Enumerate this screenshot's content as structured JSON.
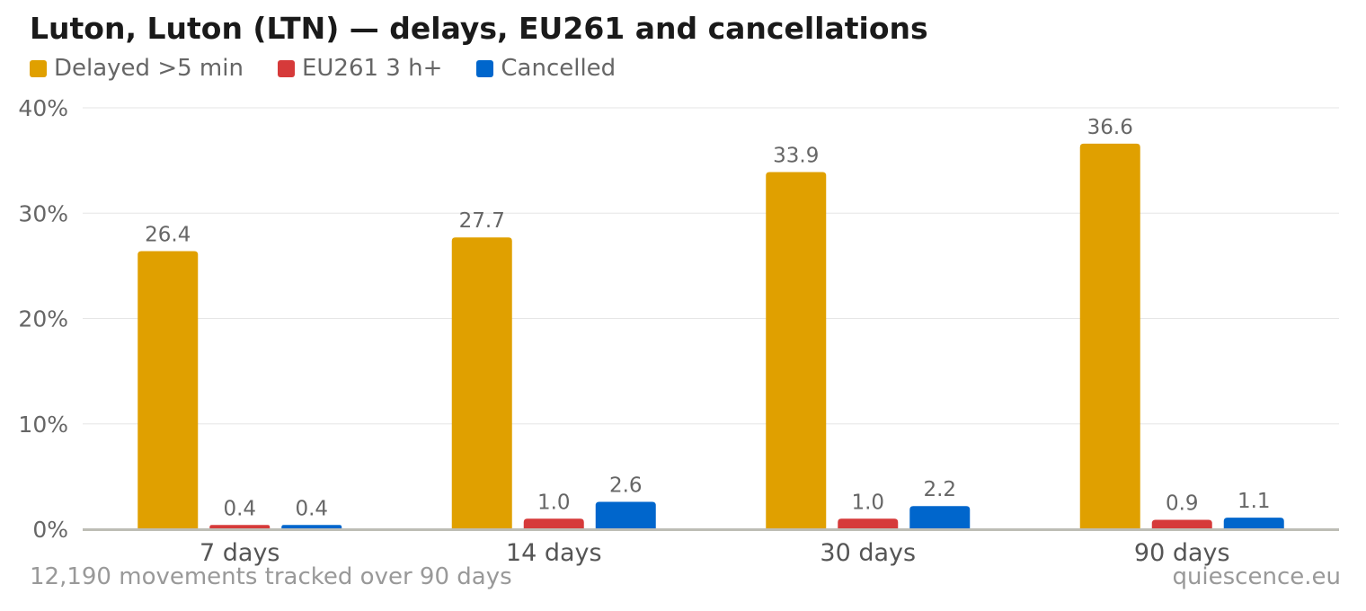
{
  "chart_data": {
    "type": "bar",
    "title": "Luton, Luton (LTN) — delays, EU261 and cancellations",
    "categories": [
      "7 days",
      "14 days",
      "30 days",
      "90 days"
    ],
    "series": [
      {
        "name": "Delayed >5 min",
        "color": "#E0A000",
        "values": [
          26.4,
          27.7,
          33.9,
          36.6
        ],
        "labels": [
          "26.4",
          "27.7",
          "33.9",
          "36.6"
        ]
      },
      {
        "name": "EU261 3 h+",
        "color": "#D63A3A",
        "values": [
          0.4,
          1.0,
          1.0,
          0.9
        ],
        "labels": [
          "0.4",
          "1.0",
          "1.0",
          "0.9"
        ]
      },
      {
        "name": "Cancelled",
        "color": "#0066CC",
        "values": [
          0.4,
          2.6,
          2.2,
          1.1
        ],
        "labels": [
          "0.4",
          "2.6",
          "2.2",
          "1.1"
        ]
      }
    ],
    "ylim": [
      0,
      40
    ],
    "yticks": [
      "0%",
      "10%",
      "20%",
      "30%",
      "40%"
    ],
    "ytick_values": [
      0,
      10,
      20,
      30,
      40
    ],
    "grid": true,
    "legend": "top-left"
  },
  "footer": {
    "note": "12,190 movements tracked over 90 days",
    "source": "quiescence.eu"
  }
}
